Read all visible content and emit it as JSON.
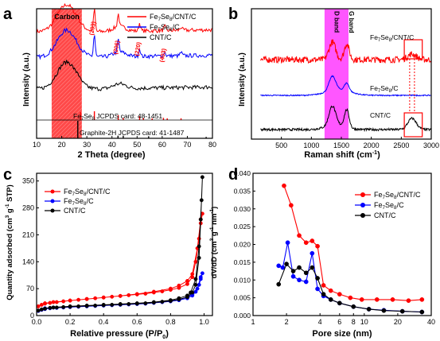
{
  "chart_data": [
    {
      "panel": "a",
      "type": "line",
      "xlabel": "2 Theta (degree)",
      "ylabel": "Intensity (a.u.)",
      "xlim": [
        10,
        80
      ],
      "xticks": [
        10,
        20,
        30,
        40,
        50,
        60,
        70,
        80
      ],
      "series": [
        {
          "name": "Fe7Se8/CNT/C",
          "label_pre": "Fe",
          "label_sub1": "7",
          "label_mid": "Se",
          "label_sub2": "8",
          "label_post": "/CNT/C",
          "color": "#ff0000"
        },
        {
          "name": "Fe7Se8/C",
          "label_pre": "Fe",
          "label_sub1": "7",
          "label_mid": "Se",
          "label_sub2": "8",
          "label_post": "/C",
          "color": "#0000ff"
        },
        {
          "name": "CNT/C",
          "label_pre": "CNT/C",
          "label_sub1": "",
          "label_mid": "",
          "label_sub2": "",
          "label_post": "",
          "color": "#000000"
        }
      ],
      "region_label": "Carbon",
      "region_range": [
        16,
        28
      ],
      "peaks": [
        {
          "label": "(203)",
          "x": 33
        },
        {
          "label": "(206)",
          "x": 42.5
        },
        {
          "label": "(220)",
          "x": 51
        },
        {
          "label": "(403)",
          "x": 61
        }
      ],
      "ref_fe": {
        "pre": "Fe",
        "sub1": "7",
        "mid": "Se",
        "sub2": "8",
        "post": " JCPDS card: 48-1451",
        "color": "#ff0000",
        "lines": [
          [
            27.5,
            0.9
          ],
          [
            33.0,
            1.0
          ],
          [
            42.5,
            0.55
          ],
          [
            44.5,
            0.25
          ],
          [
            51.0,
            0.45
          ],
          [
            52.5,
            0.25
          ],
          [
            56.0,
            0.2
          ],
          [
            60.5,
            0.25
          ],
          [
            62.0,
            0.2
          ],
          [
            67.5,
            0.2
          ]
        ]
      },
      "ref_g": {
        "text": "Graphite-2H JCPDS card: 41-1487",
        "color": "#000000",
        "lines": [
          [
            26.4,
            1.0
          ],
          [
            42.4,
            0.15
          ],
          [
            44.5,
            0.15
          ],
          [
            54.6,
            0.12
          ],
          [
            77.5,
            0.08
          ]
        ]
      }
    },
    {
      "panel": "b",
      "type": "line",
      "xlabel_main": "Raman shift (cm",
      "xlabel_sup": "-1",
      "xlabel_end": ")",
      "ylabel": "Intensity (a.u.)",
      "xlim": [
        0,
        3000
      ],
      "xticks": [
        500,
        1000,
        1500,
        2000,
        2500,
        3000
      ],
      "band_labels": [
        {
          "label": "D band",
          "x": 1350
        },
        {
          "label": "G band",
          "x": 1590
        }
      ],
      "band_range": [
        1220,
        1620
      ],
      "series": [
        {
          "name": "Fe7Se8/CNT/C",
          "label_pre": "Fe",
          "label_sub1": "7",
          "label_mid": "Se",
          "label_sub2": "8",
          "label_post": "/CNT/C",
          "color": "#ff0000"
        },
        {
          "name": "Fe7Se8/C",
          "label_pre": "Fe",
          "label_sub1": "7",
          "label_mid": "Se",
          "label_sub2": "8",
          "label_post": "/C",
          "color": "#0000ff"
        },
        {
          "name": "CNT/C",
          "label_pre": "CNT/C",
          "label_sub1": "",
          "label_mid": "",
          "label_sub2": "",
          "label_post": "",
          "color": "#000000"
        }
      ]
    },
    {
      "panel": "c",
      "type": "line",
      "xlabel_main": "Relative pressure (P/P",
      "xlabel_sub": "0",
      "xlabel_end": ")",
      "ylabel_main": "Quantity adsorbed (cm",
      "ylabel_sup1": "3",
      "ylabel_mid": " g",
      "ylabel_sup2": "-1",
      "ylabel_end": " STP)",
      "xlim": [
        0,
        1.05
      ],
      "ylim": [
        0,
        370
      ],
      "xticks": [
        0.0,
        0.2,
        0.4,
        0.6,
        0.8,
        1.0
      ],
      "yticks": [
        0,
        70,
        140,
        210,
        280,
        350
      ],
      "series": [
        {
          "name": "Fe7Se8/CNT/C",
          "label_pre": "Fe",
          "label_sub1": "7",
          "label_mid": "Se",
          "label_sub2": "8",
          "label_post": "/CNT/C",
          "color": "#ff0000",
          "x": [
            0.01,
            0.03,
            0.05,
            0.08,
            0.12,
            0.16,
            0.2,
            0.25,
            0.3,
            0.35,
            0.4,
            0.45,
            0.5,
            0.55,
            0.6,
            0.65,
            0.7,
            0.75,
            0.8,
            0.85,
            0.9,
            0.93,
            0.95,
            0.97,
            0.98,
            0.99,
            0.98,
            0.96,
            0.93,
            0.9,
            0.85,
            0.8,
            0.7,
            0.6,
            0.5,
            0.4,
            0.3,
            0.2,
            0.1,
            0.05
          ],
          "y": [
            24,
            28,
            31,
            33,
            35,
            37,
            39,
            41,
            43,
            45,
            47,
            49,
            51,
            53,
            55,
            57,
            60,
            63,
            67,
            72,
            82,
            100,
            140,
            200,
            240,
            265,
            250,
            175,
            108,
            90,
            78,
            70,
            62,
            56,
            51,
            47,
            43,
            39,
            35,
            32
          ]
        },
        {
          "name": "Fe7Se8/C",
          "label_pre": "Fe",
          "label_sub1": "7",
          "label_mid": "Se",
          "label_sub2": "8",
          "label_post": "/C",
          "color": "#0000ff",
          "x": [
            0.01,
            0.03,
            0.05,
            0.08,
            0.12,
            0.16,
            0.2,
            0.25,
            0.3,
            0.35,
            0.4,
            0.45,
            0.5,
            0.55,
            0.6,
            0.65,
            0.7,
            0.75,
            0.8,
            0.85,
            0.9,
            0.93,
            0.95,
            0.97,
            0.98,
            0.99,
            0.98,
            0.96,
            0.93,
            0.9,
            0.85,
            0.8,
            0.7,
            0.6,
            0.5,
            0.4,
            0.3,
            0.2,
            0.1,
            0.05
          ],
          "y": [
            12,
            15,
            17,
            19,
            20,
            21,
            22,
            23,
            24,
            25,
            26,
            27,
            28,
            29,
            30,
            31,
            33,
            35,
            37,
            40,
            45,
            52,
            62,
            80,
            95,
            110,
            100,
            70,
            55,
            48,
            42,
            38,
            34,
            31,
            29,
            27,
            25,
            23,
            21,
            19
          ]
        },
        {
          "name": "CNT/C",
          "label_pre": "CNT/C",
          "label_sub1": "",
          "label_mid": "",
          "label_sub2": "",
          "label_post": "",
          "color": "#000000",
          "x": [
            0.01,
            0.03,
            0.05,
            0.08,
            0.12,
            0.16,
            0.2,
            0.25,
            0.3,
            0.35,
            0.4,
            0.45,
            0.5,
            0.55,
            0.6,
            0.65,
            0.7,
            0.75,
            0.8,
            0.85,
            0.9,
            0.93,
            0.95,
            0.97,
            0.98,
            0.99,
            0.985,
            0.97,
            0.95,
            0.92,
            0.9,
            0.85,
            0.8,
            0.7,
            0.6,
            0.5,
            0.4,
            0.3,
            0.2,
            0.1
          ],
          "y": [
            13,
            16,
            18,
            20,
            21,
            22,
            23,
            24,
            25,
            26,
            27,
            28,
            29,
            30,
            31,
            32,
            34,
            36,
            38,
            42,
            48,
            60,
            80,
            150,
            250,
            360,
            300,
            180,
            95,
            60,
            52,
            45,
            40,
            35,
            32,
            30,
            28,
            26,
            24,
            21
          ]
        }
      ]
    },
    {
      "panel": "d",
      "type": "line",
      "xlabel": "Pore size (nm)",
      "ylabel_main": "dV/dD (cm",
      "ylabel_sup1": "3",
      "ylabel_mid": " g",
      "ylabel_sup2": "-1",
      "ylabel_mid2": " nm",
      "ylabel_sup3": "-1",
      "ylabel_end": ")",
      "xscale": "log",
      "xlim": [
        1,
        40
      ],
      "ylim": [
        0,
        0.04
      ],
      "xticks": [
        1,
        2,
        4,
        6,
        8,
        10,
        20,
        40
      ],
      "yticks": [
        0.0,
        0.005,
        0.01,
        0.015,
        0.02,
        0.025,
        0.03,
        0.035,
        0.04
      ],
      "ytick_labels": [
        "0.000",
        "0.005",
        "0.010",
        "0.015",
        "0.020",
        "0.025",
        "0.030",
        "0.035",
        "0.040"
      ],
      "series": [
        {
          "name": "Fe7Se8/CNT/C",
          "label_pre": "Fe",
          "label_sub1": "7",
          "label_mid": "Se",
          "label_sub2": "8",
          "label_post": "/CNT/C",
          "color": "#ff0000",
          "x": [
            1.9,
            2.2,
            2.6,
            3.0,
            3.4,
            3.8,
            4.3,
            5.0,
            6.0,
            7.5,
            9.5,
            13,
            18,
            25,
            33
          ],
          "y": [
            0.0365,
            0.031,
            0.0225,
            0.0205,
            0.021,
            0.0195,
            0.0085,
            0.007,
            0.006,
            0.005,
            0.0045,
            0.0045,
            0.0045,
            0.0042,
            0.0045
          ]
        },
        {
          "name": "Fe7Se8/C",
          "label_pre": "Fe",
          "label_sub1": "7",
          "label_mid": "Se",
          "label_sub2": "8",
          "label_post": "/C",
          "color": "#0000ff",
          "x": [
            1.7,
            1.85,
            2.05,
            2.3,
            2.6,
            3.0,
            3.4,
            3.8,
            4.3,
            5.0,
            6.0,
            8.0,
            11,
            15,
            22,
            33
          ],
          "y": [
            0.014,
            0.0135,
            0.0205,
            0.011,
            0.01,
            0.0095,
            0.0175,
            0.0075,
            0.0055,
            0.0045,
            0.0035,
            0.0025,
            0.0018,
            0.0015,
            0.0012,
            0.001
          ]
        },
        {
          "name": "CNT/C",
          "label_pre": "CNT/C",
          "label_sub1": "",
          "label_mid": "",
          "label_sub2": "",
          "label_post": "",
          "color": "#000000",
          "x": [
            1.7,
            2.0,
            2.3,
            2.6,
            3.0,
            3.4,
            3.8,
            4.3,
            5.0,
            6.0,
            8.0,
            11,
            15,
            22,
            33
          ],
          "y": [
            0.0088,
            0.0145,
            0.0125,
            0.0135,
            0.012,
            0.0135,
            0.0105,
            0.006,
            0.0045,
            0.0035,
            0.0025,
            0.0018,
            0.0014,
            0.0012,
            0.001
          ]
        }
      ]
    }
  ]
}
